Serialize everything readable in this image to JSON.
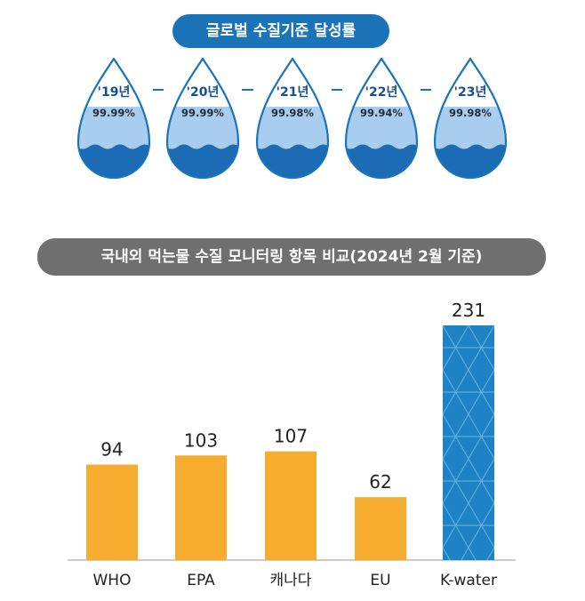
{
  "top_section": {
    "title": "글로벌 수질기준 달성률",
    "drops": [
      {
        "year": "'19년",
        "value": "99.99%"
      },
      {
        "year": "'20년",
        "value": "99.99%"
      },
      {
        "year": "'21년",
        "value": "99.98%"
      },
      {
        "year": "'22년",
        "value": "99.94%"
      },
      {
        "year": "'23년",
        "value": "99.98%"
      }
    ]
  },
  "chart_data": {
    "type": "bar",
    "title": "국내외 먹는물 수질 모니터링 항목 비교(2024년 2월 기준)",
    "categories": [
      "WHO",
      "EPA",
      "캐나다",
      "EU",
      "K-water"
    ],
    "values": [
      94,
      103,
      107,
      62,
      231
    ],
    "value_labels": [
      "94",
      "103",
      "107",
      "62",
      "231"
    ],
    "ylim": [
      0,
      240
    ],
    "grid": false,
    "colors": {
      "default": "#f5ac2f",
      "highlight": "#1f82c4",
      "highlight_pattern": "#5aaee0"
    },
    "highlight_index": 4
  },
  "colors": {
    "accent": "#1b74b8",
    "drop_outline": "#1b74b8",
    "drop_light": "#a9cdef",
    "drop_dark": "#1b6cb4",
    "title_pill_gray": "#6f6f6f",
    "axis": "#bcbcbc"
  }
}
